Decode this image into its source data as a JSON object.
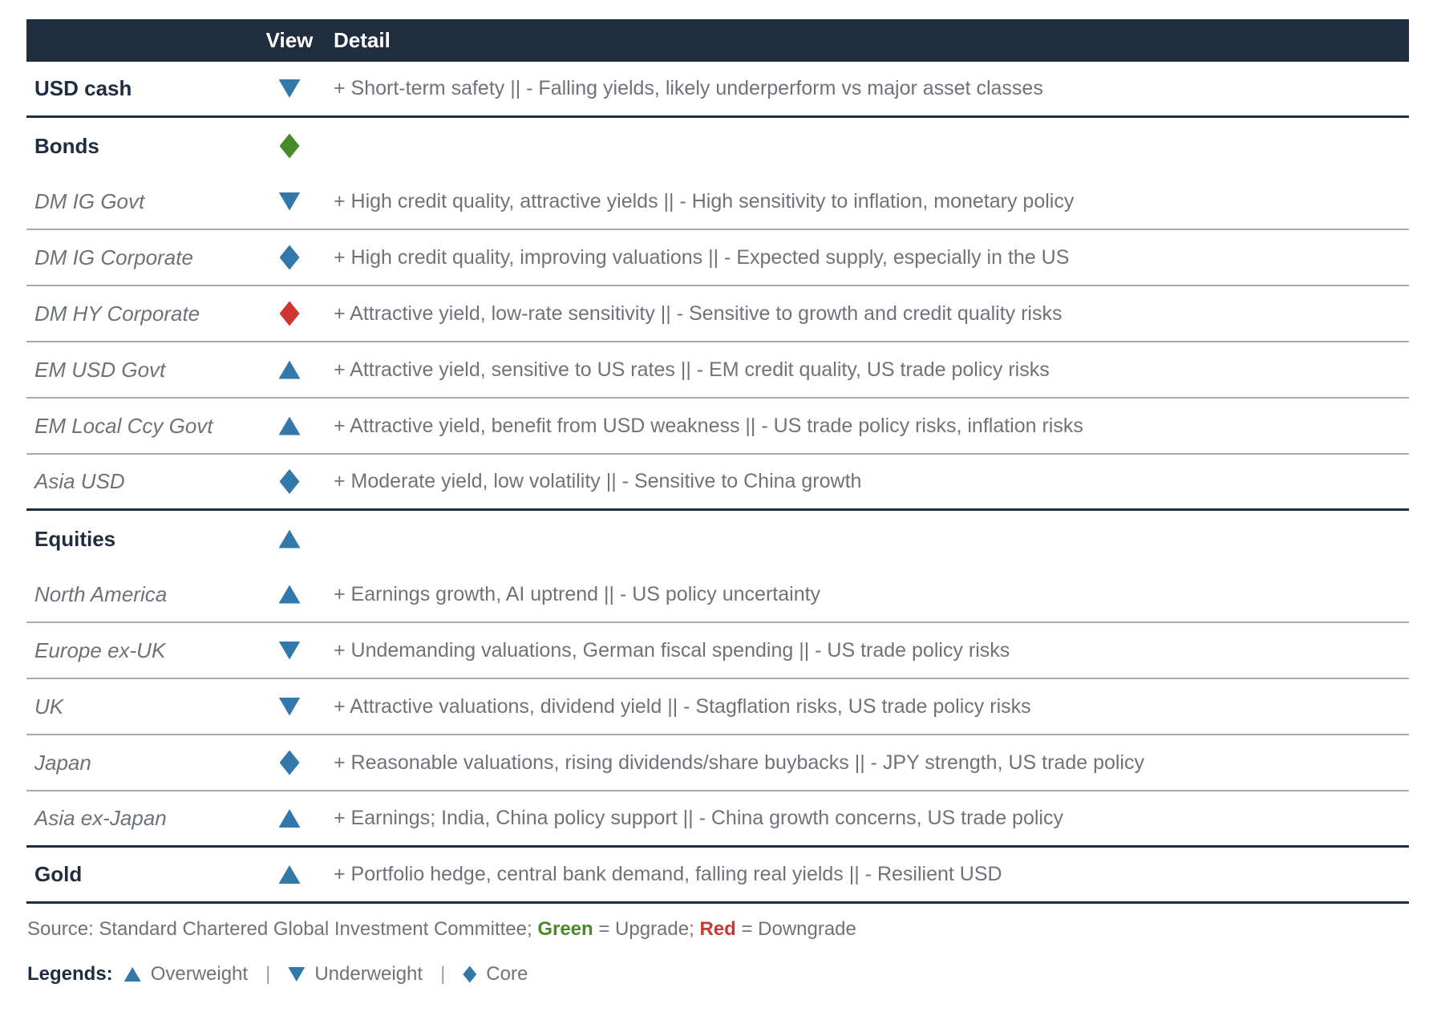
{
  "table": {
    "header": {
      "view": "View",
      "detail": "Detail"
    },
    "rows": [
      {
        "label": "USD cash",
        "type": "category",
        "icon": "triangle-down",
        "icon_color": "blue",
        "detail": "+ Short-term safety || - Falling yields, likely underperform vs major asset classes",
        "border": "dark"
      },
      {
        "label": "Bonds",
        "type": "category",
        "icon": "diamond",
        "icon_color": "green",
        "detail": "",
        "border": "none"
      },
      {
        "label": "DM IG Govt",
        "type": "sub",
        "icon": "triangle-down",
        "icon_color": "blue",
        "detail": "+ High credit quality, attractive yields || - High sensitivity to inflation, monetary policy",
        "border": "gray"
      },
      {
        "label": "DM IG Corporate",
        "type": "sub",
        "icon": "diamond",
        "icon_color": "blue",
        "detail": "+ High credit quality, improving valuations || - Expected supply, especially in the US",
        "border": "gray"
      },
      {
        "label": "DM HY Corporate",
        "type": "sub",
        "icon": "diamond",
        "icon_color": "red",
        "detail": "+ Attractive yield, low-rate sensitivity || - Sensitive to growth and credit quality risks",
        "border": "gray"
      },
      {
        "label": "EM USD Govt",
        "type": "sub",
        "icon": "triangle-up",
        "icon_color": "blue",
        "detail": "+ Attractive yield, sensitive to US rates || - EM credit quality, US trade policy risks",
        "border": "gray"
      },
      {
        "label": "EM Local Ccy Govt",
        "type": "sub",
        "icon": "triangle-up",
        "icon_color": "blue",
        "detail": "+ Attractive yield, benefit from USD weakness || - US trade policy risks, inflation risks",
        "border": "gray"
      },
      {
        "label": "Asia USD",
        "type": "sub",
        "icon": "diamond",
        "icon_color": "blue",
        "detail": "+ Moderate yield, low volatility || - Sensitive to China growth",
        "border": "dark"
      },
      {
        "label": "Equities",
        "type": "category",
        "icon": "triangle-up",
        "icon_color": "blue",
        "detail": "",
        "border": "none"
      },
      {
        "label": "North America",
        "type": "sub",
        "icon": "triangle-up",
        "icon_color": "blue",
        "detail": "+ Earnings growth, AI uptrend || - US policy uncertainty",
        "border": "gray"
      },
      {
        "label": "Europe ex-UK",
        "type": "sub",
        "icon": "triangle-down",
        "icon_color": "blue",
        "detail": "+ Undemanding valuations, German fiscal spending || - US trade policy risks",
        "border": "gray"
      },
      {
        "label": "UK",
        "type": "sub",
        "icon": "triangle-down",
        "icon_color": "blue",
        "detail": "+ Attractive valuations, dividend yield || - Stagflation risks, US trade policy risks",
        "border": "gray"
      },
      {
        "label": "Japan",
        "type": "sub",
        "icon": "diamond",
        "icon_color": "blue",
        "detail": "+ Reasonable valuations, rising dividends/share buybacks || - JPY strength, US trade policy",
        "border": "gray"
      },
      {
        "label": "Asia ex-Japan",
        "type": "sub",
        "icon": "triangle-up",
        "icon_color": "blue",
        "detail": "+ Earnings; India, China policy support || - China growth concerns, US trade policy",
        "border": "dark"
      },
      {
        "label": "Gold",
        "type": "category",
        "icon": "triangle-up",
        "icon_color": "blue",
        "detail": "+ Portfolio hedge, central bank demand, falling real yields || - Resilient USD",
        "border": "dark"
      }
    ]
  },
  "footer": {
    "source_prefix": "Source: Standard Chartered Global Investment Committee; ",
    "green_label": "Green",
    "green_suffix": " = Upgrade; ",
    "red_label": "Red",
    "red_suffix": " = Downgrade",
    "legends_label": "Legends:",
    "legend_separator": "|",
    "legend_items": [
      {
        "icon": "triangle-up",
        "label": "Overweight"
      },
      {
        "icon": "triangle-down",
        "label": "Underweight"
      },
      {
        "icon": "diamond",
        "label": "Core"
      }
    ]
  },
  "colors": {
    "blue": "#3279aa",
    "green": "#478a28",
    "red": "#cf3632",
    "navy": "#1f2d3e",
    "gray_text": "#6f7378",
    "gray_border": "#a8abae"
  }
}
